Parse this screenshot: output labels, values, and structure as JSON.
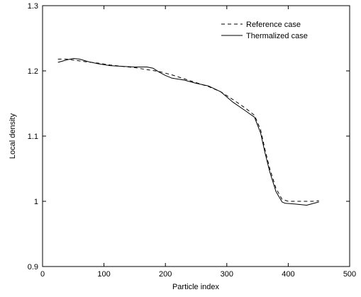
{
  "chart_data": {
    "type": "line",
    "xlabel": "Particle index",
    "ylabel": "Local density",
    "xlim": [
      0,
      500
    ],
    "ylim": [
      0.9,
      1.3
    ],
    "x_ticks": [
      0,
      100,
      200,
      300,
      400,
      500
    ],
    "y_ticks": [
      0.9,
      1,
      1.1,
      1.2,
      1.3
    ],
    "x_tick_labels": [
      "0",
      "100",
      "200",
      "300",
      "400",
      "500"
    ],
    "y_tick_labels": [
      "0.9",
      "1",
      "1.1",
      "1.2",
      "1.3"
    ],
    "grid": false,
    "legend_position": "top-right",
    "series": [
      {
        "name": "Reference case",
        "style": "dashed",
        "color": "#000000",
        "x": [
          25,
          40,
          55,
          70,
          90,
          110,
          130,
          150,
          170,
          190,
          210,
          230,
          250,
          270,
          290,
          310,
          330,
          345,
          355,
          362,
          370,
          380,
          390,
          400,
          420,
          440,
          450
        ],
        "y": [
          1.218,
          1.218,
          1.216,
          1.214,
          1.212,
          1.209,
          1.207,
          1.205,
          1.202,
          1.199,
          1.194,
          1.188,
          1.182,
          1.176,
          1.168,
          1.156,
          1.143,
          1.132,
          1.11,
          1.08,
          1.05,
          1.02,
          1.003,
          1.0,
          1.0,
          1.0,
          1.001
        ]
      },
      {
        "name": "Thermalized case",
        "style": "solid",
        "color": "#000000",
        "x": [
          25,
          40,
          50,
          60,
          75,
          90,
          110,
          130,
          150,
          170,
          180,
          190,
          200,
          210,
          230,
          250,
          270,
          290,
          310,
          330,
          345,
          355,
          362,
          370,
          380,
          390,
          395,
          410,
          430,
          450
        ],
        "y": [
          1.213,
          1.217,
          1.219,
          1.218,
          1.214,
          1.211,
          1.208,
          1.207,
          1.206,
          1.206,
          1.204,
          1.198,
          1.193,
          1.189,
          1.186,
          1.181,
          1.177,
          1.168,
          1.152,
          1.139,
          1.129,
          1.105,
          1.075,
          1.045,
          1.015,
          0.999,
          0.997,
          0.996,
          0.994,
          0.999
        ]
      }
    ]
  }
}
